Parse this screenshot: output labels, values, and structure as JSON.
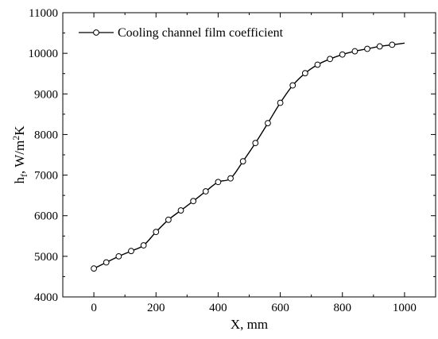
{
  "chart_data": {
    "type": "line",
    "title": "",
    "xlabel": "X, mm",
    "ylabel_parts": {
      "h": "h",
      "sub": "f",
      "mid": ", W/m",
      "sup": "2",
      "end": "K"
    },
    "xlim": [
      -100,
      1100
    ],
    "ylim": [
      4000,
      11000
    ],
    "xticks": [
      0,
      200,
      400,
      600,
      800,
      1000
    ],
    "yticks": [
      4000,
      5000,
      6000,
      7000,
      8000,
      9000,
      10000,
      11000
    ],
    "grid": false,
    "legend_position": "top-left",
    "series": [
      {
        "name": "Cooling channel film coefficient",
        "color": "#000000",
        "marker": "open-circle",
        "x": [
          0,
          40,
          80,
          120,
          160,
          200,
          240,
          280,
          320,
          360,
          400,
          440,
          480,
          520,
          560,
          600,
          640,
          680,
          720,
          760,
          800,
          840,
          880,
          920,
          960
        ],
        "y": [
          4700,
          4850,
          5000,
          5130,
          5270,
          5600,
          5900,
          6130,
          6360,
          6600,
          6830,
          6920,
          7340,
          7790,
          8280,
          8780,
          9210,
          9510,
          9720,
          9860,
          9970,
          10050,
          10110,
          10170,
          10210
        ]
      }
    ],
    "line_end": {
      "x": 1000,
      "y": 10250
    }
  }
}
